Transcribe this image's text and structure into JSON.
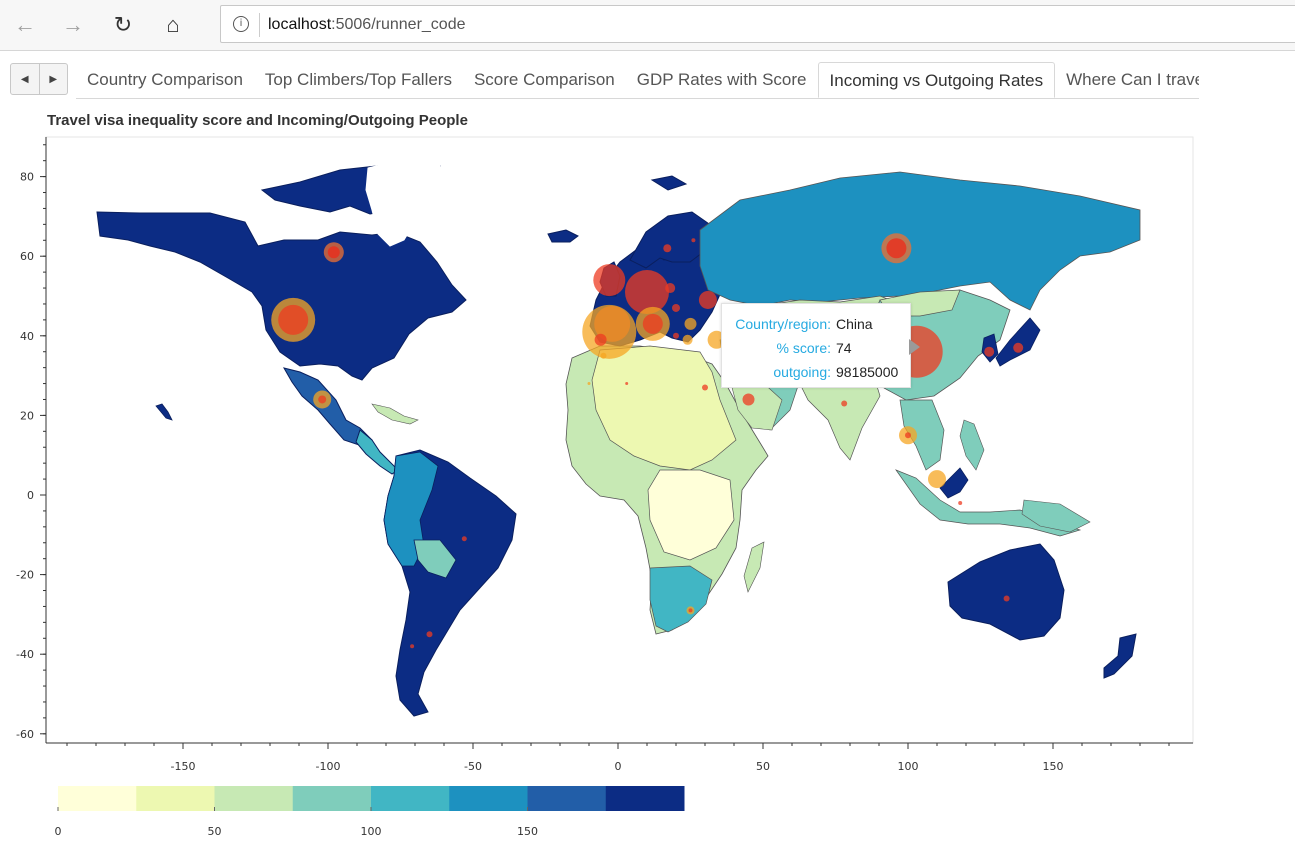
{
  "browser": {
    "url_host": "localhost",
    "url_rest": ":5006/runner_code",
    "back_icon": "back-arrow-icon",
    "forward_icon": "forward-arrow-icon",
    "reload_icon": "reload-icon",
    "home_icon": "home-icon"
  },
  "tabs": [
    {
      "label": "Country Comparison"
    },
    {
      "label": "Top Climbers/Top Fallers"
    },
    {
      "label": "Score Comparison"
    },
    {
      "label": "GDP Rates with Score"
    },
    {
      "label": "Incoming vs Outgoing Rates",
      "active": true
    },
    {
      "label": "Where Can I travel to?"
    }
  ],
  "plot": {
    "title": "Travel visa inequality score and Incoming/Outgoing People"
  },
  "tooltip": {
    "rows": [
      {
        "key": "Country/region:",
        "value": "China"
      },
      {
        "key": "% score:",
        "value": "74"
      },
      {
        "key": "outgoing:",
        "value": "98185000"
      }
    ]
  },
  "chart_data": {
    "type": "scatter",
    "x_ticks": [
      -150,
      -100,
      -50,
      0,
      50,
      100,
      150
    ],
    "y_ticks": [
      80,
      60,
      40,
      20,
      0,
      -20,
      -40,
      -60
    ],
    "xlim": [
      -190,
      190
    ],
    "ylim": [
      -62,
      90
    ],
    "colorbar": {
      "ticks": [
        0,
        50,
        100,
        150
      ],
      "range": [
        0,
        200
      ],
      "colors": [
        "#ffffd9",
        "#edf8b1",
        "#c7e9b4",
        "#7fcdbb",
        "#41b6c4",
        "#1d91c0",
        "#225ea8",
        "#0c2c84"
      ]
    },
    "bubbles": [
      {
        "x": -112,
        "y": 44,
        "r": 22,
        "c": "#f5a623"
      },
      {
        "x": -112,
        "y": 44,
        "r": 15,
        "c": "#ee3b22"
      },
      {
        "x": -98,
        "y": 61,
        "r": 10,
        "c": "#f07030"
      },
      {
        "x": -98,
        "y": 61,
        "r": 6,
        "c": "#ee2a1a"
      },
      {
        "x": -102,
        "y": 24,
        "r": 9,
        "c": "#f5a623"
      },
      {
        "x": -102,
        "y": 24,
        "r": 4,
        "c": "#ee3b22"
      },
      {
        "x": -3,
        "y": 41,
        "r": 27,
        "c": "#f5a623"
      },
      {
        "x": -2,
        "y": 43,
        "r": 18,
        "c": "#f08a25"
      },
      {
        "x": -3,
        "y": 54,
        "r": 16,
        "c": "#ee3b22"
      },
      {
        "x": 10,
        "y": 51,
        "r": 22,
        "c": "#ee3b22"
      },
      {
        "x": 12,
        "y": 43,
        "r": 17,
        "c": "#f5a623"
      },
      {
        "x": 12,
        "y": 43,
        "r": 10,
        "c": "#ee3b22"
      },
      {
        "x": 31,
        "y": 49,
        "r": 9,
        "c": "#ee3b22"
      },
      {
        "x": 34,
        "y": 39,
        "r": 9,
        "c": "#f5a623"
      },
      {
        "x": -5,
        "y": 35,
        "r": 3,
        "c": "#f5a623"
      },
      {
        "x": -6,
        "y": 39,
        "r": 6,
        "c": "#ee3b22"
      },
      {
        "x": 17,
        "y": 62,
        "r": 4,
        "c": "#ee3b22"
      },
      {
        "x": 26,
        "y": 64,
        "r": 2,
        "c": "#ee3b22"
      },
      {
        "x": 25,
        "y": 43,
        "r": 6,
        "c": "#f5a623"
      },
      {
        "x": 20,
        "y": 47,
        "r": 4,
        "c": "#ee3b22"
      },
      {
        "x": 24,
        "y": 39,
        "r": 5,
        "c": "#f5a623"
      },
      {
        "x": 18,
        "y": 52,
        "r": 5,
        "c": "#ee3b22"
      },
      {
        "x": 20,
        "y": 40,
        "r": 3,
        "c": "#ee3b22"
      },
      {
        "x": 30,
        "y": 27,
        "r": 3,
        "c": "#ee3b22"
      },
      {
        "x": 45,
        "y": 24,
        "r": 6,
        "c": "#ee3b22"
      },
      {
        "x": 78,
        "y": 23,
        "r": 3,
        "c": "#ee3b22"
      },
      {
        "x": 96,
        "y": 62,
        "r": 15,
        "c": "#f07030"
      },
      {
        "x": 96,
        "y": 62,
        "r": 10,
        "c": "#ee2a1a"
      },
      {
        "x": 103,
        "y": 36,
        "r": 26,
        "c": "#ee3b22"
      },
      {
        "x": 100,
        "y": 15,
        "r": 9,
        "c": "#f5a623"
      },
      {
        "x": 100,
        "y": 15,
        "r": 3,
        "c": "#ee3b22"
      },
      {
        "x": 110,
        "y": 4,
        "r": 9,
        "c": "#f5a623"
      },
      {
        "x": 128,
        "y": 36,
        "r": 5,
        "c": "#ee3b22"
      },
      {
        "x": 138,
        "y": 37,
        "r": 5,
        "c": "#ee3b22"
      },
      {
        "x": 134,
        "y": -26,
        "r": 3,
        "c": "#ee3b22"
      },
      {
        "x": -53,
        "y": -11,
        "r": 2.5,
        "c": "#ee3b22"
      },
      {
        "x": -65,
        "y": -35,
        "r": 3,
        "c": "#ee3b22"
      },
      {
        "x": -71,
        "y": -38,
        "r": 2,
        "c": "#ee3b22"
      },
      {
        "x": 25,
        "y": -29,
        "r": 4,
        "c": "#f5a623"
      },
      {
        "x": 25,
        "y": -29,
        "r": 2,
        "c": "#ee3b22"
      },
      {
        "x": 118,
        "y": -2,
        "r": 2,
        "c": "#ee3b22"
      },
      {
        "x": 3,
        "y": 28,
        "r": 1.5,
        "c": "#ee3b22"
      },
      {
        "x": -10,
        "y": 28,
        "r": 1.5,
        "c": "#f5a623"
      }
    ]
  }
}
